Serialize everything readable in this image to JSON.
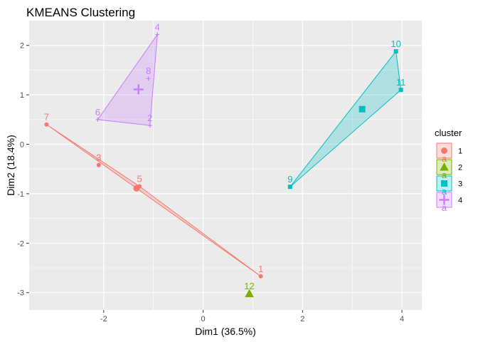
{
  "chart_data": {
    "type": "scatter",
    "title": "KMEANS Clustering",
    "xlabel": "Dim1 (36.5%)",
    "ylabel": "Dim2 (18.4%)",
    "xlim": [
      -3.5,
      4.4
    ],
    "ylim": [
      -3.35,
      2.5
    ],
    "x_ticks": [
      -2,
      0,
      2,
      4
    ],
    "y_ticks": [
      -3,
      -2,
      -1,
      0,
      1,
      2
    ],
    "grid": true,
    "legend": {
      "title": "cluster",
      "position": "right",
      "entries": [
        "1",
        "2",
        "3",
        "4"
      ],
      "swatch_letter": "a"
    },
    "colors": {
      "1": "#F8766D",
      "2": "#7CAE00",
      "3": "#00BFC4",
      "4": "#C77CFF"
    },
    "series": [
      {
        "name": "1",
        "shape": "circle",
        "points": [
          {
            "label": "7",
            "x": -3.15,
            "y": 0.4
          },
          {
            "label": "3",
            "x": -2.1,
            "y": -0.42
          },
          {
            "label": "5",
            "x": -1.28,
            "y": -0.85
          },
          {
            "label": "1",
            "x": 1.16,
            "y": -2.67
          }
        ],
        "hull": [
          0,
          3,
          2
        ],
        "centroid": {
          "x": -1.34,
          "y": -0.89
        }
      },
      {
        "name": "2",
        "shape": "triangle",
        "points": [
          {
            "label": "12",
            "x": 0.93,
            "y": -3.02
          }
        ],
        "hull": [],
        "centroid": {
          "x": 0.93,
          "y": -3.02
        }
      },
      {
        "name": "3",
        "shape": "square",
        "points": [
          {
            "label": "9",
            "x": 1.75,
            "y": -0.86
          },
          {
            "label": "10",
            "x": 3.88,
            "y": 1.88
          },
          {
            "label": "11",
            "x": 3.98,
            "y": 1.1
          }
        ],
        "hull": [
          0,
          1,
          2
        ],
        "centroid": {
          "x": 3.2,
          "y": 0.71
        }
      },
      {
        "name": "4",
        "shape": "cross",
        "points": [
          {
            "label": "4",
            "x": -0.92,
            "y": 2.22
          },
          {
            "label": "8",
            "x": -1.1,
            "y": 1.33
          },
          {
            "label": "6",
            "x": -2.12,
            "y": 0.5
          },
          {
            "label": "2",
            "x": -1.07,
            "y": 0.38
          }
        ],
        "hull": [
          0,
          2,
          3
        ],
        "centroid": {
          "x": -1.3,
          "y": 1.11
        }
      }
    ]
  }
}
